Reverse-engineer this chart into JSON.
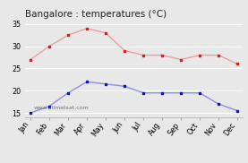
{
  "title": "Bangalore : temperatures (°C)",
  "months": [
    "Jan",
    "Feb",
    "Mar",
    "Apr",
    "May",
    "Jun",
    "Jul",
    "Aug",
    "Sep",
    "Oct",
    "Nov",
    "Dec"
  ],
  "high_temps": [
    27,
    30,
    32.5,
    34,
    33,
    29,
    28,
    28,
    27,
    28,
    28,
    26
  ],
  "low_temps": [
    15,
    16.5,
    19.5,
    22,
    21.5,
    21,
    19.5,
    19.5,
    19.5,
    19.5,
    17,
    15.5
  ],
  "high_color_line": "#e8a0a0",
  "high_color_marker": "#cc2222",
  "low_color_line": "#9090d8",
  "low_color_marker": "#1010cc",
  "ylim": [
    14,
    36
  ],
  "yticks": [
    15,
    20,
    25,
    30,
    35
  ],
  "background_color": "#e8e8e8",
  "watermark": "www.allmetsat.com",
  "title_fontsize": 7.5,
  "tick_fontsize": 5.8,
  "watermark_fontsize": 4.5
}
